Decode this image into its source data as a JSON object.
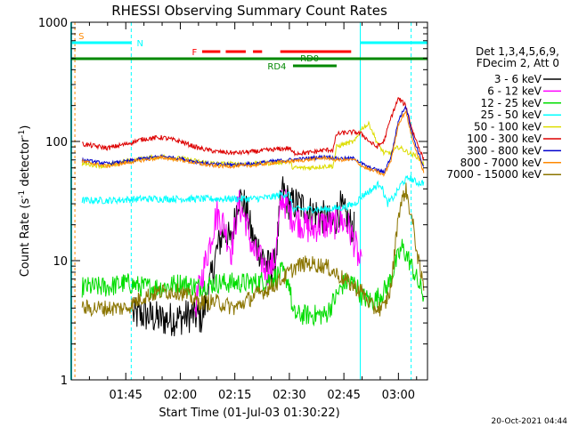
{
  "chart_data": {
    "type": "line",
    "title": "RHESSI Observing Summary Count Rates",
    "xlabel": "Start Time (01-Jul-03 01:30:22)",
    "ylabel_main": "Count Rate (s",
    "ylabel_sup1": "-1",
    "ylabel_mid": " detector",
    "ylabel_sup2": "-1",
    "ylabel_end": ")",
    "yscale": "log",
    "ylim": [
      1,
      1000
    ],
    "xlim_minutes": [
      0,
      98
    ],
    "x_ticks": [
      {
        "minute": 15,
        "label": "01:45"
      },
      {
        "minute": 30,
        "label": "02:00"
      },
      {
        "minute": 45,
        "label": "02:15"
      },
      {
        "minute": 60,
        "label": "02:30"
      },
      {
        "minute": 75,
        "label": "02:45"
      },
      {
        "minute": 90,
        "label": "03:00"
      }
    ],
    "y_ticks": [
      {
        "value": 1,
        "label": "1"
      },
      {
        "value": 10,
        "label": "10"
      },
      {
        "value": 100,
        "label": "100"
      },
      {
        "value": 1000,
        "label": "1000"
      }
    ],
    "legend_header": [
      "Det 1,3,4,5,6,9,",
      "FDecim 2, Att 0"
    ],
    "legend_placement": "right",
    "series": [
      {
        "name": "3 - 6 keV",
        "color": "#000000",
        "x": [
          17,
          20,
          25,
          30,
          33,
          36,
          38,
          40,
          42,
          44,
          46,
          48,
          50,
          52,
          54,
          56,
          58,
          60,
          62,
          64,
          66,
          68,
          70,
          72,
          74,
          76,
          78
        ],
        "values": [
          3.5,
          3.5,
          3.2,
          3.3,
          3.5,
          3.3,
          6,
          12,
          18,
          14,
          35,
          28,
          15,
          12,
          9,
          9,
          40,
          30,
          30,
          28,
          25,
          25,
          22,
          20,
          28,
          22,
          18
        ]
      },
      {
        "name": "6 - 12 keV",
        "color": "#ff00ff",
        "x": [
          34,
          37,
          40,
          42,
          44,
          46,
          48,
          50,
          52,
          54,
          56,
          58,
          60,
          62,
          64,
          66,
          68,
          70,
          72,
          74,
          76,
          78,
          80
        ],
        "values": [
          4,
          10,
          25,
          20,
          12,
          30,
          22,
          12,
          10,
          8,
          10,
          35,
          25,
          22,
          20,
          18,
          20,
          20,
          20,
          22,
          20,
          14,
          8
        ]
      },
      {
        "name": "12 - 25 keV",
        "color": "#00dd00",
        "x": [
          3,
          10,
          15,
          20,
          25,
          30,
          35,
          40,
          45,
          50,
          55,
          58,
          60,
          61,
          65,
          70,
          75,
          78,
          80,
          83,
          87,
          89,
          91,
          93,
          95,
          97
        ],
        "values": [
          6,
          6,
          6.5,
          6,
          6,
          6.5,
          6,
          6.5,
          6.5,
          6.5,
          7,
          8,
          6.5,
          3.5,
          3.5,
          3.5,
          6.5,
          6.5,
          5,
          4.5,
          6,
          9,
          13,
          10,
          7,
          5
        ]
      },
      {
        "name": "25 - 50 keV",
        "color": "#00ffff",
        "x": [
          3,
          10,
          20,
          30,
          40,
          50,
          55,
          58,
          60,
          61,
          65,
          70,
          75,
          78,
          80,
          83,
          85,
          87,
          89,
          91,
          93,
          95,
          97
        ],
        "values": [
          32,
          32,
          33,
          33,
          33,
          33,
          34,
          36,
          36,
          27,
          27,
          27,
          28,
          30,
          35,
          40,
          45,
          30,
          35,
          45,
          50,
          45,
          45
        ]
      },
      {
        "name": "50 - 100 keV",
        "color": "#dddd00",
        "x": [
          3,
          10,
          15,
          20,
          25,
          30,
          35,
          40,
          45,
          50,
          55,
          60,
          61,
          65,
          70,
          72,
          73,
          75,
          78,
          80,
          82,
          84,
          86,
          88,
          90,
          93,
          95,
          97
        ],
        "values": [
          65,
          62,
          68,
          72,
          75,
          72,
          68,
          65,
          65,
          65,
          66,
          68,
          60,
          60,
          62,
          62,
          90,
          95,
          100,
          130,
          140,
          100,
          80,
          80,
          90,
          80,
          75,
          65
        ]
      },
      {
        "name": "100 - 300 keV",
        "color": "#dd0000",
        "x": [
          3,
          10,
          15,
          20,
          25,
          30,
          35,
          40,
          45,
          50,
          55,
          60,
          61,
          65,
          70,
          72,
          73,
          75,
          78,
          80,
          82,
          84,
          86,
          88,
          90,
          92,
          94,
          97
        ],
        "values": [
          95,
          88,
          95,
          105,
          108,
          100,
          88,
          82,
          80,
          82,
          85,
          88,
          80,
          80,
          85,
          85,
          115,
          118,
          120,
          115,
          100,
          90,
          100,
          160,
          230,
          200,
          120,
          70
        ]
      },
      {
        "name": "300 - 800 keV",
        "color": "#0000cc",
        "x": [
          3,
          10,
          15,
          20,
          25,
          30,
          35,
          40,
          45,
          50,
          55,
          60,
          65,
          70,
          73,
          75,
          78,
          80,
          82,
          84,
          86,
          88,
          90,
          92,
          94,
          97
        ],
        "values": [
          70,
          65,
          68,
          72,
          75,
          72,
          67,
          64,
          64,
          65,
          68,
          70,
          72,
          75,
          72,
          72,
          72,
          65,
          60,
          58,
          55,
          75,
          150,
          200,
          110,
          60
        ]
      },
      {
        "name": "800 - 7000 keV",
        "color": "#ff8800",
        "x": [
          3,
          10,
          15,
          20,
          25,
          30,
          35,
          40,
          45,
          50,
          55,
          60,
          65,
          70,
          73,
          75,
          78,
          80,
          82,
          84,
          86,
          88,
          90,
          92,
          94,
          97
        ],
        "values": [
          68,
          62,
          66,
          70,
          73,
          70,
          65,
          62,
          62,
          63,
          66,
          68,
          70,
          73,
          70,
          70,
          70,
          62,
          58,
          56,
          52,
          70,
          140,
          180,
          100,
          55
        ]
      },
      {
        "name": "7000 - 15000 keV",
        "color": "#8b7500",
        "x": [
          3,
          10,
          15,
          20,
          25,
          30,
          35,
          40,
          45,
          50,
          55,
          58,
          60,
          62,
          65,
          70,
          75,
          78,
          80,
          83,
          86,
          88,
          90,
          92,
          94,
          96,
          97
        ],
        "values": [
          4,
          4,
          4,
          5,
          5.5,
          5.5,
          4.5,
          4.5,
          4,
          5,
          6,
          7,
          8,
          9,
          9.5,
          9,
          7,
          6,
          5.5,
          4,
          4,
          6,
          25,
          40,
          20,
          8,
          6
        ]
      }
    ],
    "annotations": [
      {
        "label": "S",
        "color": "#ff8800"
      },
      {
        "label": "N",
        "color": "#00ffff"
      },
      {
        "label": "F",
        "color": "#ff0000"
      },
      {
        "label": "RD0",
        "color": "#008800"
      },
      {
        "label": "RD4",
        "color": "#008800"
      }
    ],
    "timestamp": "20-Oct-2021 04:44"
  }
}
